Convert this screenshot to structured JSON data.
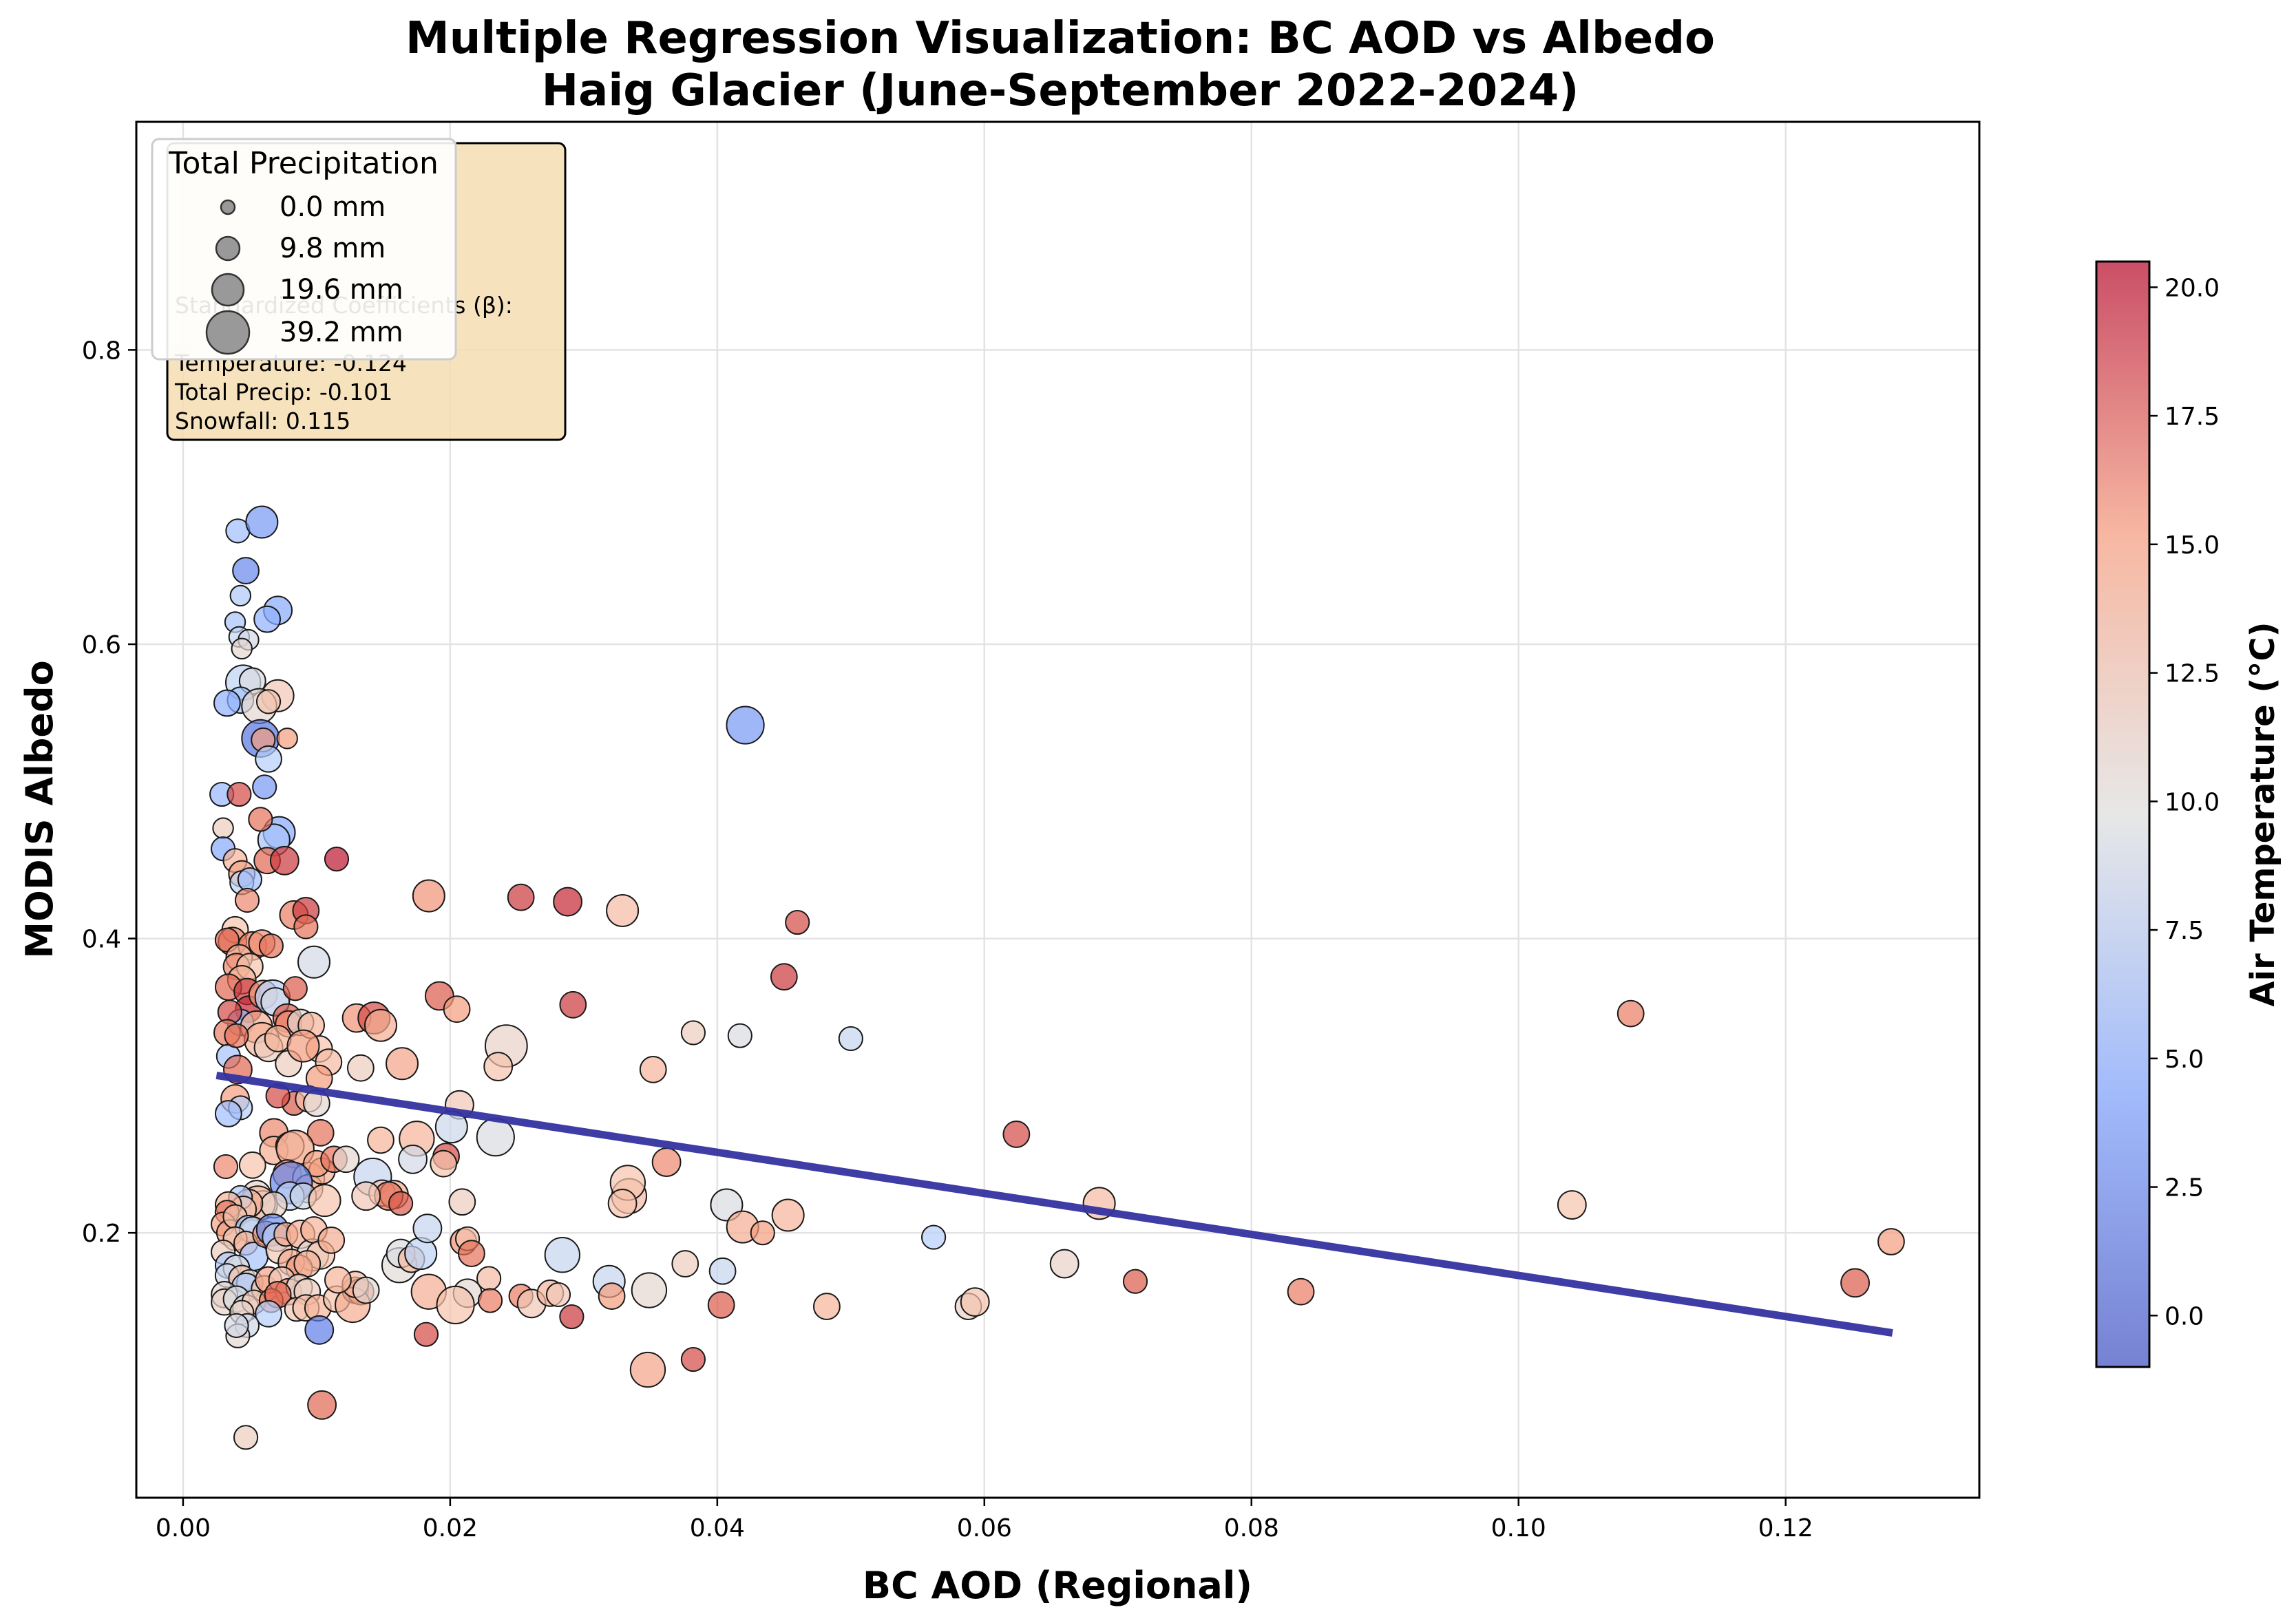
{
  "chart_data": {
    "type": "scatter",
    "title": "Multiple Regression Visualization: BC AOD vs Albedo",
    "subtitle": "Haig Glacier (June-September 2022-2024)",
    "xlabel": "BC AOD (Regional)",
    "ylabel": "MODIS Albedo",
    "xlim": [
      -0.0035,
      0.1345
    ],
    "ylim": [
      0.02,
      0.955
    ],
    "x_ticks": [
      "0.00",
      "0.02",
      "0.04",
      "0.06",
      "0.08",
      "0.10",
      "0.12"
    ],
    "y_ticks": [
      "0.2",
      "0.4",
      "0.6",
      "0.8"
    ],
    "grid": true,
    "colorbar": {
      "label": "Air Temperature (°C)",
      "min": -1.0,
      "max": 20.5,
      "ticks": [
        "0.0",
        "2.5",
        "5.0",
        "7.5",
        "10.0",
        "12.5",
        "15.0",
        "17.5",
        "20.0"
      ],
      "colormap": "coolwarm"
    },
    "stats_box": {
      "heading": "Standardized Coefficients (β):",
      "lines": [
        "Temperature: -0.124",
        "Total Precip: -0.101",
        "Snowfall: 0.115"
      ]
    },
    "size_legend": {
      "title": "Total Precipitation",
      "entries": [
        "0.0 mm",
        "9.8 mm",
        "19.6 mm",
        "39.2 mm"
      ],
      "precip_values": [
        0.0,
        9.8,
        19.6,
        39.2
      ]
    },
    "regression_line": {
      "x": [
        0.0025,
        0.128
      ],
      "y": [
        0.307,
        0.132
      ],
      "color": "#3333a0"
    },
    "points": [
      [
        0.0041,
        0.677,
        5.5,
        2
      ],
      [
        0.0059,
        0.683,
        3.0,
        6
      ],
      [
        0.0047,
        0.65,
        2.0,
        3
      ],
      [
        0.0043,
        0.633,
        6.5,
        1
      ],
      [
        0.0071,
        0.623,
        4.0,
        4
      ],
      [
        0.0039,
        0.615,
        6.0,
        1
      ],
      [
        0.0063,
        0.617,
        4.5,
        3
      ],
      [
        0.0042,
        0.605,
        8.0,
        1
      ],
      [
        0.0049,
        0.603,
        9.0,
        1
      ],
      [
        0.0044,
        0.597,
        10.5,
        1
      ],
      [
        0.0045,
        0.574,
        7.5,
        8
      ],
      [
        0.0052,
        0.575,
        9.5,
        3
      ],
      [
        0.0071,
        0.565,
        12.0,
        6
      ],
      [
        0.0043,
        0.562,
        6.0,
        3
      ],
      [
        0.0033,
        0.56,
        4.5,
        3
      ],
      [
        0.0057,
        0.558,
        10.5,
        8
      ],
      [
        0.0064,
        0.561,
        12.5,
        2
      ],
      [
        0.0058,
        0.536,
        1.0,
        10
      ],
      [
        0.006,
        0.535,
        15.0,
        2
      ],
      [
        0.0078,
        0.536,
        15.0,
        1
      ],
      [
        0.0064,
        0.522,
        7.0,
        3
      ],
      [
        0.0061,
        0.503,
        3.0,
        2
      ],
      [
        0.0029,
        0.498,
        5.0,
        2
      ],
      [
        0.0042,
        0.498,
        18.5,
        2
      ],
      [
        0.0072,
        0.472,
        4.0,
        6
      ],
      [
        0.0068,
        0.467,
        6.0,
        6
      ],
      [
        0.003,
        0.475,
        11.5,
        1
      ],
      [
        0.003,
        0.461,
        4.0,
        2
      ],
      [
        0.0058,
        0.481,
        17.0,
        2
      ],
      [
        0.0039,
        0.453,
        13.5,
        2
      ],
      [
        0.0063,
        0.453,
        17.5,
        3
      ],
      [
        0.0076,
        0.453,
        19.0,
        4
      ],
      [
        0.0115,
        0.454,
        20.0,
        2
      ],
      [
        0.0044,
        0.444,
        14.5,
        3
      ],
      [
        0.0044,
        0.438,
        7.5,
        2
      ],
      [
        0.005,
        0.44,
        5.5,
        2
      ],
      [
        0.0048,
        0.426,
        16.0,
        2
      ],
      [
        0.0083,
        0.416,
        16.5,
        4
      ],
      [
        0.0092,
        0.419,
        19.0,
        3
      ],
      [
        0.0092,
        0.408,
        17.0,
        2
      ],
      [
        0.0039,
        0.406,
        12.5,
        3
      ],
      [
        0.0037,
        0.398,
        16.0,
        4
      ],
      [
        0.0033,
        0.399,
        17.5,
        2
      ],
      [
        0.0052,
        0.395,
        16.5,
        4
      ],
      [
        0.0042,
        0.387,
        13.5,
        3
      ],
      [
        0.0059,
        0.397,
        15.5,
        3
      ],
      [
        0.0066,
        0.395,
        17.0,
        2
      ],
      [
        0.004,
        0.381,
        16.0,
        3
      ],
      [
        0.005,
        0.381,
        12.5,
        3
      ],
      [
        0.0044,
        0.372,
        13.5,
        4
      ],
      [
        0.0034,
        0.367,
        17.5,
        3
      ],
      [
        0.0048,
        0.364,
        19.0,
        3
      ],
      [
        0.0049,
        0.352,
        19.5,
        3
      ],
      [
        0.006,
        0.362,
        15.0,
        4
      ],
      [
        0.0067,
        0.36,
        7.0,
        8
      ],
      [
        0.0069,
        0.357,
        9.0,
        4
      ],
      [
        0.0078,
        0.346,
        18.0,
        4
      ],
      [
        0.0079,
        0.342,
        16.0,
        3
      ],
      [
        0.0043,
        0.343,
        5.0,
        3
      ],
      [
        0.0055,
        0.34,
        14.0,
        6
      ],
      [
        0.0059,
        0.331,
        13.5,
        8
      ],
      [
        0.0064,
        0.326,
        11.5,
        4
      ],
      [
        0.0071,
        0.332,
        13.5,
        3
      ],
      [
        0.0088,
        0.343,
        10.5,
        3
      ],
      [
        0.0096,
        0.341,
        13.5,
        3
      ],
      [
        0.0079,
        0.315,
        11.5,
        3
      ],
      [
        0.0102,
        0.325,
        12.5,
        3
      ],
      [
        0.0109,
        0.316,
        13.0,
        3
      ],
      [
        0.009,
        0.327,
        15.0,
        6
      ],
      [
        0.0084,
        0.366,
        18.0,
        2
      ],
      [
        0.0098,
        0.384,
        9.0,
        6
      ],
      [
        0.0035,
        0.35,
        18.5,
        2
      ],
      [
        0.0033,
        0.336,
        16.5,
        3
      ],
      [
        0.0034,
        0.32,
        6.0,
        2
      ],
      [
        0.004,
        0.334,
        17.0,
        2
      ],
      [
        0.0041,
        0.311,
        17.5,
        4
      ],
      [
        0.0039,
        0.291,
        15.0,
        4
      ],
      [
        0.0043,
        0.285,
        7.0,
        2
      ],
      [
        0.0034,
        0.281,
        5.5,
        3
      ],
      [
        0.0032,
        0.245,
        16.0,
        2
      ],
      [
        0.0102,
        0.305,
        15.0,
        3
      ],
      [
        0.0083,
        0.288,
        18.0,
        2
      ],
      [
        0.0094,
        0.291,
        12.5,
        3
      ],
      [
        0.01,
        0.288,
        10.5,
        3
      ],
      [
        0.0071,
        0.293,
        18.5,
        2
      ],
      [
        0.0068,
        0.268,
        16.0,
        4
      ],
      [
        0.0103,
        0.268,
        17.0,
        3
      ],
      [
        0.0068,
        0.256,
        14.0,
        4
      ],
      [
        0.008,
        0.259,
        11.5,
        4
      ],
      [
        0.0084,
        0.257,
        14.5,
        10
      ],
      [
        0.0078,
        0.24,
        16.0,
        4
      ],
      [
        0.0094,
        0.237,
        12.5,
        6
      ],
      [
        0.0094,
        0.23,
        13.5,
        4
      ],
      [
        0.0104,
        0.242,
        14.0,
        3
      ],
      [
        0.01,
        0.247,
        15.0,
        3
      ],
      [
        0.0081,
        0.234,
        2.0,
        14
      ],
      [
        0.008,
        0.225,
        7.5,
        4
      ],
      [
        0.009,
        0.225,
        8.5,
        3
      ],
      [
        0.0052,
        0.246,
        12.5,
        3
      ],
      [
        0.0055,
        0.226,
        11.0,
        4
      ],
      [
        0.006,
        0.219,
        9.5,
        4
      ],
      [
        0.0056,
        0.22,
        13.0,
        8
      ],
      [
        0.0068,
        0.219,
        11.0,
        3
      ],
      [
        0.0049,
        0.22,
        14.0,
        4
      ],
      [
        0.0043,
        0.224,
        6.5,
        2
      ],
      [
        0.0045,
        0.216,
        12.0,
        3
      ],
      [
        0.0034,
        0.219,
        13.5,
        3
      ],
      [
        0.0033,
        0.214,
        17.0,
        2
      ],
      [
        0.003,
        0.206,
        14.5,
        2
      ],
      [
        0.0035,
        0.2,
        15.0,
        3
      ],
      [
        0.0039,
        0.211,
        12.5,
        2
      ],
      [
        0.0049,
        0.203,
        5.5,
        3
      ],
      [
        0.0052,
        0.202,
        8.5,
        3
      ],
      [
        0.0039,
        0.196,
        12.0,
        2
      ],
      [
        0.0047,
        0.193,
        13.5,
        2
      ],
      [
        0.003,
        0.187,
        11.5,
        2
      ],
      [
        0.0053,
        0.184,
        6.0,
        4
      ],
      [
        0.0062,
        0.199,
        15.5,
        3
      ],
      [
        0.0067,
        0.202,
        2.5,
        6
      ],
      [
        0.007,
        0.197,
        7.0,
        4
      ],
      [
        0.0072,
        0.188,
        12.0,
        3
      ],
      [
        0.0077,
        0.199,
        14.0,
        2
      ],
      [
        0.0088,
        0.199,
        14.0,
        4
      ],
      [
        0.0097,
        0.185,
        10.5,
        6
      ],
      [
        0.0098,
        0.202,
        13.5,
        3
      ],
      [
        0.0103,
        0.185,
        12.5,
        4
      ],
      [
        0.0111,
        0.195,
        14.0,
        3
      ],
      [
        0.0106,
        0.222,
        12.5,
        6
      ],
      [
        0.0113,
        0.25,
        17.0,
        3
      ],
      [
        0.0122,
        0.25,
        10.5,
        3
      ],
      [
        0.0081,
        0.18,
        14.0,
        3
      ],
      [
        0.0087,
        0.176,
        15.5,
        3
      ],
      [
        0.0093,
        0.179,
        13.5,
        3
      ],
      [
        0.0034,
        0.178,
        6.5,
        3
      ],
      [
        0.004,
        0.176,
        9.5,
        3
      ],
      [
        0.0033,
        0.171,
        8.5,
        2
      ],
      [
        0.0044,
        0.169,
        12.5,
        3
      ],
      [
        0.005,
        0.166,
        10.0,
        3
      ],
      [
        0.0047,
        0.163,
        6.5,
        4
      ],
      [
        0.0061,
        0.162,
        12.5,
        3
      ],
      [
        0.0064,
        0.168,
        14.5,
        3
      ],
      [
        0.0074,
        0.168,
        12.0,
        3
      ],
      [
        0.0079,
        0.16,
        15.0,
        3
      ],
      [
        0.0087,
        0.163,
        10.5,
        3
      ],
      [
        0.0093,
        0.16,
        11.5,
        3
      ],
      [
        0.0031,
        0.158,
        10.5,
        3
      ],
      [
        0.0031,
        0.153,
        11.0,
        3
      ],
      [
        0.004,
        0.155,
        9.5,
        3
      ],
      [
        0.0047,
        0.149,
        10.0,
        3
      ],
      [
        0.0053,
        0.153,
        12.0,
        2
      ],
      [
        0.0066,
        0.154,
        16.5,
        2
      ],
      [
        0.0071,
        0.158,
        17.5,
        3
      ],
      [
        0.0064,
        0.145,
        7.0,
        3
      ],
      [
        0.0085,
        0.148,
        12.0,
        2
      ],
      [
        0.0092,
        0.149,
        12.5,
        3
      ],
      [
        0.0101,
        0.149,
        13.5,
        3
      ],
      [
        0.0115,
        0.155,
        12.5,
        3
      ],
      [
        0.0044,
        0.146,
        11.0,
        2
      ],
      [
        0.0048,
        0.137,
        8.5,
        2
      ],
      [
        0.0041,
        0.13,
        10.5,
        2
      ],
      [
        0.0102,
        0.134,
        1.5,
        4
      ],
      [
        0.0104,
        0.083,
        17.5,
        4
      ],
      [
        0.0047,
        0.061,
        11.5,
        2
      ],
      [
        0.004,
        0.137,
        9.0,
        2
      ],
      [
        0.0129,
        0.161,
        17.0,
        3
      ],
      [
        0.0133,
        0.16,
        16.5,
        3
      ],
      [
        0.0127,
        0.151,
        14.0,
        8
      ],
      [
        0.0129,
        0.165,
        13.0,
        3
      ],
      [
        0.0116,
        0.168,
        13.5,
        3
      ],
      [
        0.0137,
        0.161,
        10.5,
        3
      ],
      [
        0.0162,
        0.178,
        10.0,
        8
      ],
      [
        0.0163,
        0.186,
        9.5,
        4
      ],
      [
        0.0171,
        0.182,
        13.0,
        3
      ],
      [
        0.0178,
        0.186,
        7.5,
        6
      ],
      [
        0.0183,
        0.203,
        8.0,
        4
      ],
      [
        0.0184,
        0.16,
        14.0,
        8
      ],
      [
        0.0182,
        0.131,
        18.5,
        2
      ],
      [
        0.0175,
        0.264,
        13.5,
        8
      ],
      [
        0.0172,
        0.25,
        9.0,
        4
      ],
      [
        0.0142,
        0.238,
        8.0,
        10
      ],
      [
        0.0149,
        0.227,
        12.5,
        3
      ],
      [
        0.0158,
        0.226,
        14.0,
        4
      ],
      [
        0.0154,
        0.225,
        17.0,
        4
      ],
      [
        0.0163,
        0.22,
        18.0,
        2
      ],
      [
        0.0148,
        0.263,
        13.5,
        3
      ],
      [
        0.0137,
        0.225,
        12.0,
        4
      ],
      [
        0.0133,
        0.312,
        11.5,
        3
      ],
      [
        0.013,
        0.346,
        15.5,
        4
      ],
      [
        0.0143,
        0.346,
        18.5,
        6
      ],
      [
        0.0148,
        0.341,
        14.0,
        6
      ],
      [
        0.0164,
        0.315,
        14.5,
        6
      ],
      [
        0.0192,
        0.361,
        18.0,
        4
      ],
      [
        0.0205,
        0.352,
        15.0,
        3
      ],
      [
        0.0184,
        0.429,
        15.5,
        6
      ],
      [
        0.0253,
        0.428,
        19.0,
        3
      ],
      [
        0.0288,
        0.425,
        19.5,
        4
      ],
      [
        0.0329,
        0.419,
        13.0,
        6
      ],
      [
        0.046,
        0.411,
        18.5,
        2
      ],
      [
        0.045,
        0.374,
        19.0,
        3
      ],
      [
        0.0292,
        0.355,
        19.0,
        3
      ],
      [
        0.0382,
        0.336,
        11.5,
        2
      ],
      [
        0.0417,
        0.334,
        9.5,
        2
      ],
      [
        0.05,
        0.332,
        8.0,
        2
      ],
      [
        0.0352,
        0.311,
        13.5,
        3
      ],
      [
        0.0242,
        0.327,
        11.0,
        14
      ],
      [
        0.0236,
        0.313,
        12.5,
        4
      ],
      [
        0.0207,
        0.287,
        12.0,
        4
      ],
      [
        0.0201,
        0.272,
        8.5,
        6
      ],
      [
        0.0197,
        0.252,
        18.5,
        3
      ],
      [
        0.0195,
        0.247,
        12.5,
        3
      ],
      [
        0.0234,
        0.265,
        9.5,
        10
      ],
      [
        0.0209,
        0.221,
        11.5,
        3
      ],
      [
        0.021,
        0.194,
        15.5,
        3
      ],
      [
        0.0213,
        0.196,
        12.5,
        2
      ],
      [
        0.0216,
        0.186,
        17.0,
        3
      ],
      [
        0.0229,
        0.169,
        13.0,
        2
      ],
      [
        0.0213,
        0.159,
        10.5,
        4
      ],
      [
        0.0204,
        0.151,
        12.5,
        10
      ],
      [
        0.023,
        0.154,
        16.5,
        2
      ],
      [
        0.0253,
        0.157,
        16.5,
        2
      ],
      [
        0.0261,
        0.152,
        12.0,
        4
      ],
      [
        0.0275,
        0.159,
        13.5,
        3
      ],
      [
        0.0281,
        0.158,
        12.0,
        2
      ],
      [
        0.0284,
        0.185,
        8.0,
        8
      ],
      [
        0.0291,
        0.143,
        19.0,
        2
      ],
      [
        0.0319,
        0.167,
        8.0,
        6
      ],
      [
        0.0321,
        0.157,
        15.0,
        3
      ],
      [
        0.0334,
        0.225,
        13.0,
        8
      ],
      [
        0.0333,
        0.234,
        12.5,
        8
      ],
      [
        0.0329,
        0.22,
        12.5,
        4
      ],
      [
        0.0349,
        0.161,
        10.5,
        8
      ],
      [
        0.0348,
        0.107,
        14.5,
        8
      ],
      [
        0.0362,
        0.248,
        16.0,
        4
      ],
      [
        0.0376,
        0.179,
        11.5,
        3
      ],
      [
        0.0382,
        0.114,
        18.5,
        2
      ],
      [
        0.0404,
        0.174,
        8.0,
        3
      ],
      [
        0.0403,
        0.151,
        18.0,
        3
      ],
      [
        0.0407,
        0.219,
        9.5,
        6
      ],
      [
        0.0419,
        0.204,
        14.0,
        6
      ],
      [
        0.0421,
        0.545,
        3.0,
        10
      ],
      [
        0.0434,
        0.2,
        15.0,
        2
      ],
      [
        0.0453,
        0.212,
        13.5,
        6
      ],
      [
        0.0482,
        0.15,
        13.5,
        3
      ],
      [
        0.0562,
        0.197,
        7.0,
        2
      ],
      [
        0.0588,
        0.15,
        11.0,
        3
      ],
      [
        0.0593,
        0.153,
        12.5,
        4
      ],
      [
        0.0624,
        0.267,
        18.5,
        3
      ],
      [
        0.066,
        0.179,
        11.0,
        4
      ],
      [
        0.0686,
        0.22,
        13.0,
        6
      ],
      [
        0.0713,
        0.167,
        18.0,
        2
      ],
      [
        0.0837,
        0.16,
        16.5,
        3
      ],
      [
        0.104,
        0.219,
        12.5,
        4
      ],
      [
        0.1084,
        0.349,
        16.5,
        3
      ],
      [
        0.1252,
        0.166,
        18.0,
        4
      ],
      [
        0.1279,
        0.194,
        15.0,
        3
      ]
    ]
  }
}
